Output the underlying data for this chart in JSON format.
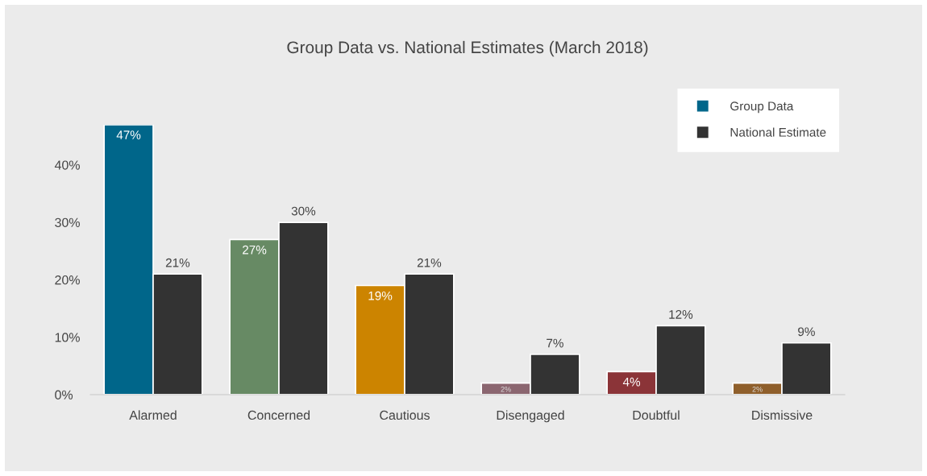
{
  "chart_data": {
    "type": "bar",
    "title": "Group Data vs. National Estimates (March 2018)",
    "categories": [
      "Alarmed",
      "Concerned",
      "Cautious",
      "Disengaged",
      "Doubtful",
      "Dismissive"
    ],
    "series": [
      {
        "name": "Group Data",
        "color": "#00668a",
        "colors": [
          "#00668a",
          "#678a64",
          "#cc8400",
          "#8b6670",
          "#8b3438",
          "#8f5f2b"
        ],
        "values": [
          47,
          27,
          19,
          2,
          4,
          2
        ],
        "value_labels": [
          "47%",
          "27%",
          "19%",
          "2%",
          "4%",
          "2%"
        ]
      },
      {
        "name": "National Estimate",
        "color": "#333333",
        "values": [
          21,
          30,
          21,
          7,
          12,
          9
        ],
        "value_labels": [
          "21%",
          "30%",
          "21%",
          "7%",
          "12%",
          "9%"
        ]
      }
    ],
    "yticks": [
      {
        "value": 0,
        "label": "0%"
      },
      {
        "value": 10,
        "label": "10%"
      },
      {
        "value": 20,
        "label": "20%"
      },
      {
        "value": 30,
        "label": "30%"
      },
      {
        "value": 40,
        "label": "40%"
      }
    ],
    "ylim": [
      0,
      47
    ],
    "grid": false,
    "legend": "top right"
  }
}
